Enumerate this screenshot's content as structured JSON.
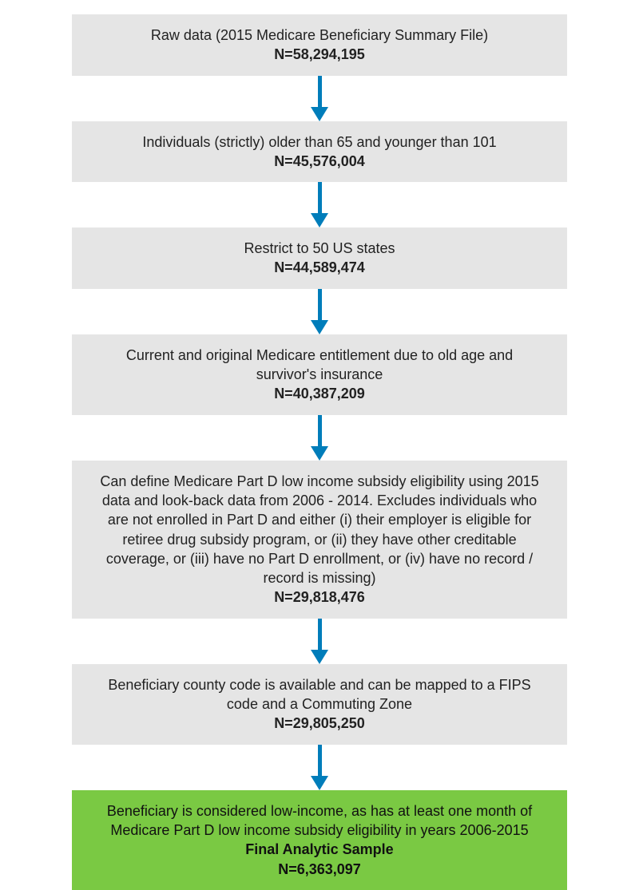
{
  "flow": {
    "type": "flowchart",
    "background_color": "#ffffff",
    "box_color": "#e5e5e5",
    "final_box_color": "#7ac943",
    "arrow_color": "#007dba",
    "arrow_shaft_width": 5,
    "arrow_head_width": 22,
    "arrow_head_height": 18,
    "desc_fontsize": 18,
    "n_fontsize": 18,
    "steps": [
      {
        "desc": "Raw data (2015 Medicare Beneficiary Summary File)",
        "n": "N=58,294,195",
        "arrow_height": 58
      },
      {
        "desc": "Individuals (strictly) older than 65 and younger than 101",
        "n": "N=45,576,004",
        "arrow_height": 58
      },
      {
        "desc": "Restrict to 50 US states",
        "n": "N=44,589,474",
        "arrow_height": 58
      },
      {
        "desc": "Current and original Medicare entitlement due to old age and survivor's insurance",
        "n": "N=40,387,209",
        "arrow_height": 58
      },
      {
        "desc": "Can define Medicare Part D low income subsidy eligibility using 2015 data and look-back data from 2006 - 2014. Excludes individuals who are not enrolled in Part D and either (i) their employer is eligible for retiree drug subsidy program, or (ii) they have other creditable coverage, or (iii) have no Part D enrollment, or (iv) have no record / record is missing)",
        "n": "N=29,818,476",
        "arrow_height": 58
      },
      {
        "desc": "Beneficiary county code is available and can be mapped to a FIPS code and a Commuting Zone",
        "n": "N=29,805,250",
        "arrow_height": 58
      },
      {
        "desc": "Beneficiary is considered low-income, as has at least one month of Medicare Part D low income subsidy eligibility in years 2006-2015",
        "extra": "Final Analytic Sample",
        "n": "N=6,363,097",
        "final": true
      }
    ]
  }
}
